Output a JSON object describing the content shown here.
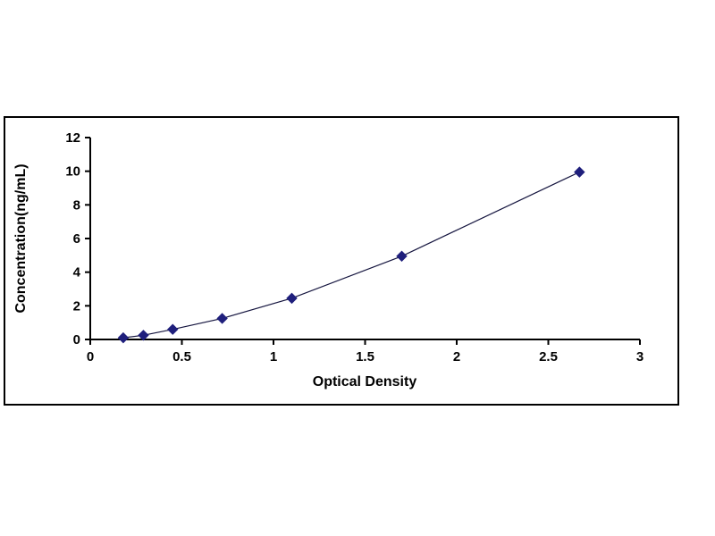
{
  "page": {
    "background": "#ffffff"
  },
  "chart_frame": {
    "border_color": "#000000",
    "background": "#ffffff"
  },
  "chart_data": {
    "type": "line",
    "title": "",
    "xlabel": "Optical Density",
    "ylabel": "Concentration(ng/mL)",
    "x": [
      0.18,
      0.29,
      0.45,
      0.72,
      1.1,
      1.7,
      2.67
    ],
    "y": [
      0.1,
      0.25,
      0.6,
      1.25,
      2.45,
      4.95,
      9.95
    ],
    "xlim": [
      0,
      3
    ],
    "ylim": [
      0,
      12
    ],
    "xticks": {
      "values": [
        0,
        0.5,
        1,
        1.5,
        2,
        2.5,
        3
      ],
      "labels": [
        "0",
        "0.5",
        "1",
        "1.5",
        "2",
        "2.5",
        "3"
      ]
    },
    "yticks": {
      "values": [
        0,
        2,
        4,
        6,
        8,
        10,
        12
      ],
      "labels": [
        "0",
        "2",
        "4",
        "6",
        "8",
        "10",
        "12"
      ]
    },
    "grid": false,
    "legend": null,
    "line_color": "#15153f",
    "marker": "diamond",
    "marker_color": "#1f1f7c",
    "axis_color": "#000000"
  }
}
